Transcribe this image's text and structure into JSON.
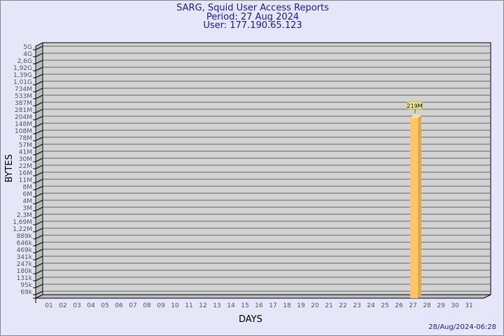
{
  "header": {
    "title": "SARG, Squid User Access Reports",
    "period": "Period: 27 Aug 2024",
    "user": "User: 177.190.65.123"
  },
  "footer": {
    "timestamp": "28/Aug/2024-06:28"
  },
  "chart_data": {
    "type": "bar",
    "xlabel": "DAYS",
    "ylabel": "BYTES",
    "y_scale": "log",
    "y_ticks": [
      "5G",
      "4G",
      "2,6G",
      "1,92G",
      "1,39G",
      "1,01G",
      "734M",
      "533M",
      "387M",
      "281M",
      "204M",
      "148M",
      "108M",
      "78M",
      "57M",
      "41M",
      "30M",
      "22M",
      "16M",
      "11M",
      "8M",
      "6M",
      "4M",
      "3M",
      "2,3M",
      "1,69M",
      "1,22M",
      "889k",
      "646k",
      "469k",
      "341k",
      "247k",
      "180k",
      "131k",
      "95k",
      "69k"
    ],
    "categories": [
      "01",
      "02",
      "03",
      "04",
      "05",
      "06",
      "07",
      "08",
      "09",
      "10",
      "11",
      "12",
      "13",
      "14",
      "15",
      "16",
      "17",
      "18",
      "19",
      "20",
      "21",
      "22",
      "23",
      "24",
      "25",
      "26",
      "27",
      "28",
      "29",
      "30",
      "31"
    ],
    "values": [
      {
        "day": "27",
        "value": "219M"
      }
    ],
    "grid": true,
    "colors": {
      "bar": "#ffc468",
      "bar_side": "#e0a850",
      "plot_bg": "#d3d3d3",
      "title": "#1a1a9c"
    }
  }
}
